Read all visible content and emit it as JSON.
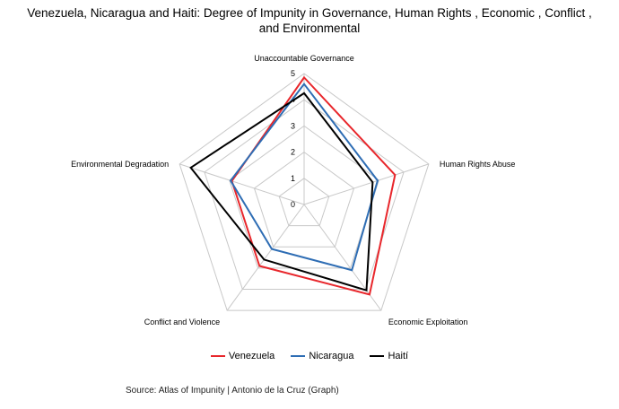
{
  "title_line1": "Venezuela, Nicaragua and Haiti: Degree of Impunity in  Governance, Human Rights , Economic , Conflict ,",
  "title_line2": "and Environmental",
  "source": "Source: Atlas of Impunity | Antonio de la Cruz  (Graph)",
  "chart_data": {
    "type": "radar",
    "title": "Venezuela, Nicaragua and Haiti: Degree of Impunity in  Governance, Human Rights , Economic , Conflict , and Environmental",
    "categories": [
      "Unaccountable Governance",
      "Human Rights Abuse",
      "Economic Exploitation",
      "Conflict and Violence",
      "Environmental Degradation"
    ],
    "r_ticks": [
      "0",
      "1",
      "2",
      "3",
      "4",
      "5"
    ],
    "rlim": [
      0,
      5
    ],
    "grid": true,
    "legend_position": "bottom",
    "series": [
      {
        "name": "Venezuela",
        "color": "#e8262b",
        "values": [
          4.85,
          3.65,
          4.25,
          2.9,
          2.9
        ]
      },
      {
        "name": "Nicaragua",
        "color": "#2e6db4",
        "values": [
          4.6,
          2.95,
          3.1,
          2.1,
          2.95
        ]
      },
      {
        "name": "Haití",
        "color": "#000000",
        "values": [
          4.25,
          2.75,
          4.05,
          2.6,
          4.55
        ]
      }
    ]
  }
}
